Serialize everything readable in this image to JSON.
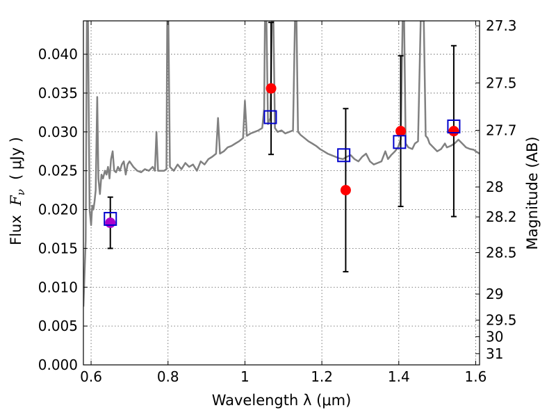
{
  "chart_data": {
    "type": "scatter",
    "xlabel": "Wavelength  λ (μm)",
    "ylabel": {
      "prefix": "Flux  ",
      "var": "F",
      "sub": "ν",
      "unit": "  ( μJy )"
    },
    "ylabel_right": "Magnitude (AB)",
    "xlim": [
      0.58,
      1.61
    ],
    "ylim": [
      0.0,
      0.0443
    ],
    "grid": true,
    "x_ticks": [
      {
        "value": 0.6,
        "label": "0.6"
      },
      {
        "value": 0.8,
        "label": "0.8"
      },
      {
        "value": 1.0,
        "label": "1"
      },
      {
        "value": 1.2,
        "label": "1.2"
      },
      {
        "value": 1.4,
        "label": "1.4"
      },
      {
        "value": 1.6,
        "label": "1.6"
      }
    ],
    "y_ticks": [
      {
        "value": 0.0,
        "label": "0.000"
      },
      {
        "value": 0.005,
        "label": "0.005"
      },
      {
        "value": 0.01,
        "label": "0.010"
      },
      {
        "value": 0.015,
        "label": "0.015"
      },
      {
        "value": 0.02,
        "label": "0.020"
      },
      {
        "value": 0.025,
        "label": "0.025"
      },
      {
        "value": 0.03,
        "label": "0.030"
      },
      {
        "value": 0.035,
        "label": "0.035"
      },
      {
        "value": 0.04,
        "label": "0.040"
      }
    ],
    "right_ticks": [
      {
        "mag": 27.3,
        "label": "27.3"
      },
      {
        "mag": 27.5,
        "label": "27.5"
      },
      {
        "mag": 27.7,
        "label": "27.7"
      },
      {
        "mag": 28.0,
        "label": "28"
      },
      {
        "mag": 28.2,
        "label": "28.2"
      },
      {
        "mag": 28.5,
        "label": "28.5"
      },
      {
        "mag": 29.0,
        "label": "29"
      },
      {
        "mag": 29.5,
        "label": "29.5"
      },
      {
        "mag": 30.0,
        "label": "30"
      },
      {
        "mag": 31.0,
        "label": "31"
      }
    ],
    "colors": {
      "spectrum": "#808080",
      "observed": "#ff0000",
      "model": "#0000cc",
      "highlight": "#aa00cc",
      "errorbar": "#000000",
      "grid": "#555555"
    },
    "spectrum": [
      [
        0.58,
        0.0075
      ],
      [
        0.586,
        0.016
      ],
      [
        0.589,
        0.0443
      ],
      [
        0.592,
        0.0443
      ],
      [
        0.596,
        0.02
      ],
      [
        0.6,
        0.018
      ],
      [
        0.603,
        0.0205
      ],
      [
        0.606,
        0.02
      ],
      [
        0.609,
        0.021
      ],
      [
        0.612,
        0.0225
      ],
      [
        0.616,
        0.0345
      ],
      [
        0.619,
        0.024
      ],
      [
        0.623,
        0.022
      ],
      [
        0.627,
        0.0245
      ],
      [
        0.631,
        0.024
      ],
      [
        0.636,
        0.025
      ],
      [
        0.64,
        0.0245
      ],
      [
        0.644,
        0.0255
      ],
      [
        0.648,
        0.024
      ],
      [
        0.652,
        0.0265
      ],
      [
        0.656,
        0.0275
      ],
      [
        0.66,
        0.025
      ],
      [
        0.665,
        0.0248
      ],
      [
        0.67,
        0.0255
      ],
      [
        0.675,
        0.025
      ],
      [
        0.68,
        0.0258
      ],
      [
        0.685,
        0.0262
      ],
      [
        0.69,
        0.0245
      ],
      [
        0.695,
        0.0258
      ],
      [
        0.7,
        0.0262
      ],
      [
        0.71,
        0.0255
      ],
      [
        0.72,
        0.025
      ],
      [
        0.73,
        0.0248
      ],
      [
        0.74,
        0.0252
      ],
      [
        0.75,
        0.025
      ],
      [
        0.76,
        0.0255
      ],
      [
        0.766,
        0.025
      ],
      [
        0.77,
        0.03
      ],
      [
        0.774,
        0.025
      ],
      [
        0.78,
        0.025
      ],
      [
        0.79,
        0.025
      ],
      [
        0.796,
        0.0252
      ],
      [
        0.798,
        0.0443
      ],
      [
        0.801,
        0.0443
      ],
      [
        0.805,
        0.0255
      ],
      [
        0.815,
        0.025
      ],
      [
        0.825,
        0.0258
      ],
      [
        0.835,
        0.0252
      ],
      [
        0.845,
        0.026
      ],
      [
        0.855,
        0.0255
      ],
      [
        0.865,
        0.0258
      ],
      [
        0.875,
        0.025
      ],
      [
        0.885,
        0.0262
      ],
      [
        0.895,
        0.0258
      ],
      [
        0.905,
        0.0265
      ],
      [
        0.915,
        0.0268
      ],
      [
        0.925,
        0.0272
      ],
      [
        0.93,
        0.0318
      ],
      [
        0.935,
        0.0272
      ],
      [
        0.945,
        0.0275
      ],
      [
        0.955,
        0.028
      ],
      [
        0.965,
        0.0282
      ],
      [
        0.975,
        0.0285
      ],
      [
        0.985,
        0.0288
      ],
      [
        0.995,
        0.0292
      ],
      [
        1.0,
        0.034
      ],
      [
        1.005,
        0.0295
      ],
      [
        1.015,
        0.0298
      ],
      [
        1.025,
        0.03
      ],
      [
        1.035,
        0.0302
      ],
      [
        1.045,
        0.0305
      ],
      [
        1.05,
        0.033
      ],
      [
        1.052,
        0.0443
      ],
      [
        1.056,
        0.0443
      ],
      [
        1.06,
        0.031
      ],
      [
        1.066,
        0.0318
      ],
      [
        1.07,
        0.0443
      ],
      [
        1.074,
        0.0443
      ],
      [
        1.078,
        0.0305
      ],
      [
        1.085,
        0.03
      ],
      [
        1.095,
        0.0302
      ],
      [
        1.105,
        0.0298
      ],
      [
        1.115,
        0.03
      ],
      [
        1.125,
        0.0302
      ],
      [
        1.13,
        0.0443
      ],
      [
        1.134,
        0.0443
      ],
      [
        1.138,
        0.03
      ],
      [
        1.145,
        0.0296
      ],
      [
        1.155,
        0.0292
      ],
      [
        1.165,
        0.0288
      ],
      [
        1.175,
        0.0285
      ],
      [
        1.185,
        0.0282
      ],
      [
        1.195,
        0.0278
      ],
      [
        1.205,
        0.0275
      ],
      [
        1.215,
        0.0272
      ],
      [
        1.225,
        0.027
      ],
      [
        1.235,
        0.0268
      ],
      [
        1.245,
        0.0266
      ],
      [
        1.255,
        0.0265
      ],
      [
        1.265,
        0.0268
      ],
      [
        1.275,
        0.027
      ],
      [
        1.285,
        0.0265
      ],
      [
        1.295,
        0.0262
      ],
      [
        1.305,
        0.0268
      ],
      [
        1.315,
        0.0272
      ],
      [
        1.325,
        0.0262
      ],
      [
        1.335,
        0.0258
      ],
      [
        1.345,
        0.026
      ],
      [
        1.355,
        0.0262
      ],
      [
        1.365,
        0.0275
      ],
      [
        1.372,
        0.0265
      ],
      [
        1.38,
        0.027
      ],
      [
        1.39,
        0.0275
      ],
      [
        1.398,
        0.028
      ],
      [
        1.405,
        0.029
      ],
      [
        1.41,
        0.0443
      ],
      [
        1.414,
        0.0443
      ],
      [
        1.418,
        0.0285
      ],
      [
        1.425,
        0.028
      ],
      [
        1.435,
        0.0278
      ],
      [
        1.442,
        0.0285
      ],
      [
        1.45,
        0.0288
      ],
      [
        1.457,
        0.0443
      ],
      [
        1.465,
        0.0443
      ],
      [
        1.47,
        0.0295
      ],
      [
        1.475,
        0.0292
      ],
      [
        1.48,
        0.0285
      ],
      [
        1.49,
        0.028
      ],
      [
        1.5,
        0.0275
      ],
      [
        1.51,
        0.0278
      ],
      [
        1.52,
        0.0285
      ],
      [
        1.525,
        0.028
      ],
      [
        1.535,
        0.0282
      ],
      [
        1.545,
        0.0285
      ],
      [
        1.555,
        0.029
      ],
      [
        1.565,
        0.0285
      ],
      [
        1.575,
        0.028
      ],
      [
        1.585,
        0.0278
      ],
      [
        1.595,
        0.0277
      ],
      [
        1.6,
        0.0275
      ],
      [
        1.61,
        0.0272
      ]
    ],
    "observed": [
      {
        "x": 0.65,
        "y": 0.0183,
        "err": 0.0033,
        "color": "highlight"
      },
      {
        "x": 1.068,
        "y": 0.0356,
        "err": 0.0085
      },
      {
        "x": 1.262,
        "y": 0.0225,
        "err": 0.0105
      },
      {
        "x": 1.405,
        "y": 0.0301,
        "err": 0.0097
      },
      {
        "x": 1.543,
        "y": 0.0301,
        "err": 0.011
      }
    ],
    "model": [
      {
        "x": 0.65,
        "y": 0.0188
      },
      {
        "x": 1.066,
        "y": 0.0319
      },
      {
        "x": 1.257,
        "y": 0.027
      },
      {
        "x": 1.402,
        "y": 0.0287
      },
      {
        "x": 1.543,
        "y": 0.0307
      }
    ]
  }
}
